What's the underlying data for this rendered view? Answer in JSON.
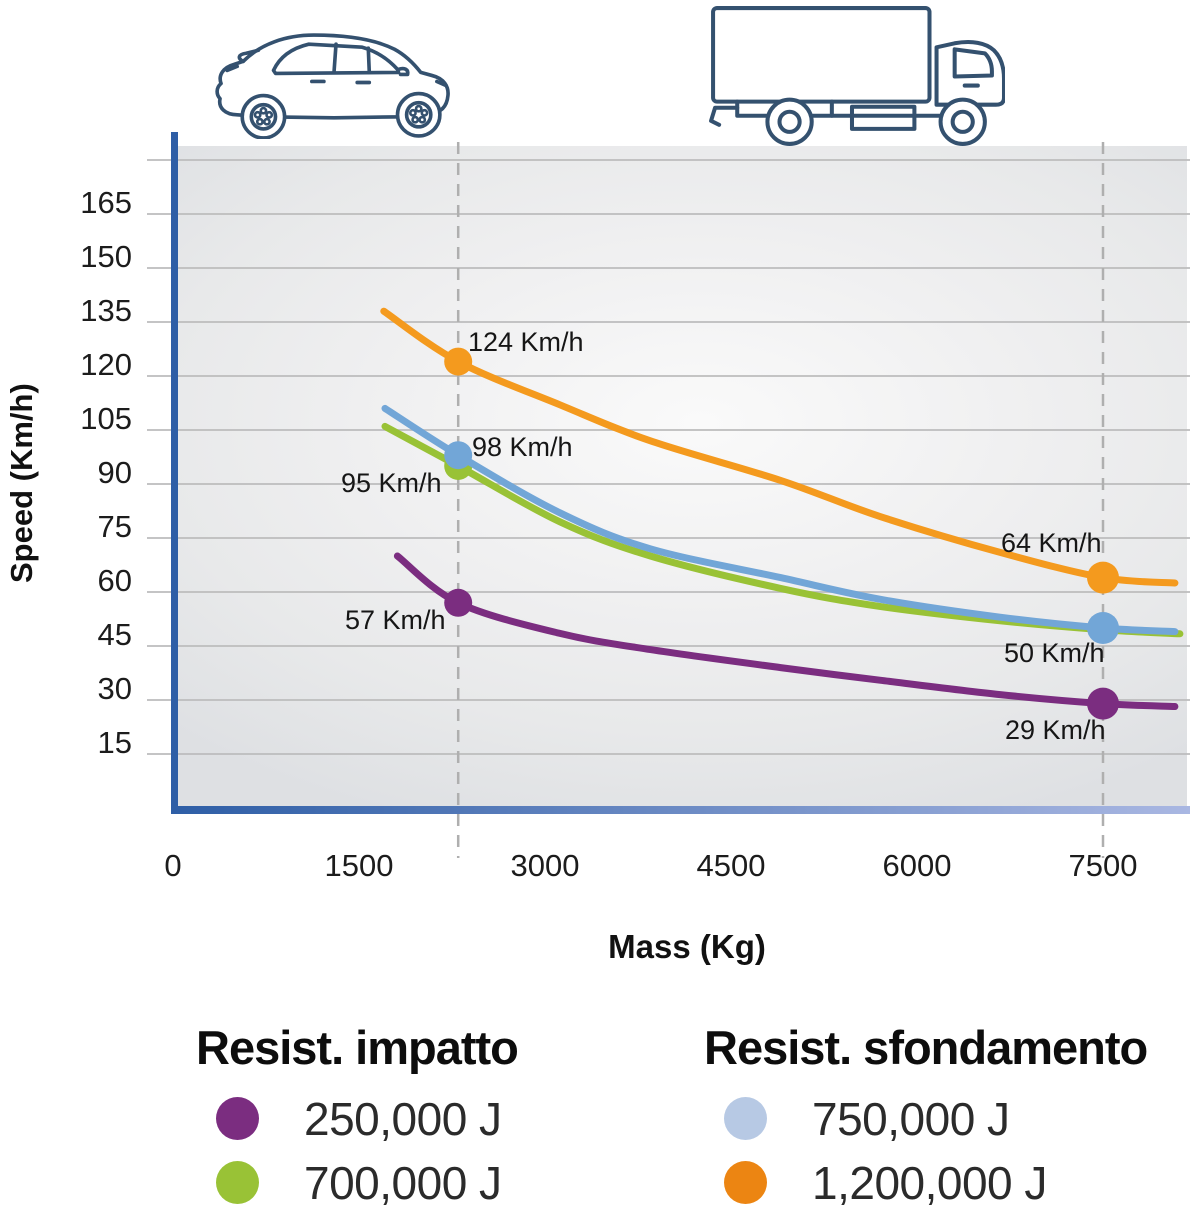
{
  "chart_data": {
    "type": "line",
    "xlabel": "Mass (Kg)",
    "ylabel": "Speed (Km/h)",
    "x_ticks": [
      0,
      1500,
      3000,
      4500,
      6000,
      7500
    ],
    "y_ticks": [
      15,
      30,
      45,
      60,
      75,
      90,
      105,
      120,
      135,
      150,
      165
    ],
    "y_gridlines": [
      15,
      30,
      45,
      60,
      75,
      90,
      105,
      120,
      135,
      150,
      165,
      180
    ],
    "xlim": [
      0,
      8200
    ],
    "ylim": [
      0,
      185
    ],
    "grid": true,
    "legend_position": "bottom",
    "reference_lines": [
      {
        "vehicle": "car",
        "icon": "car-icon",
        "mass": 2300
      },
      {
        "vehicle": "truck",
        "icon": "truck-icon",
        "mass": 7500
      }
    ],
    "series": [
      {
        "name": "250,000 J",
        "group": "Resist. impatto",
        "color": "#7B2D80",
        "points": [
          [
            1810,
            70
          ],
          [
            2300,
            57
          ],
          [
            3120,
            48.5
          ],
          [
            3850,
            44
          ],
          [
            4900,
            39
          ],
          [
            5700,
            35.5
          ],
          [
            6670,
            31.5
          ],
          [
            7500,
            29
          ],
          [
            8080,
            28.2
          ]
        ],
        "markers": [
          {
            "mass": 2300,
            "speed": 57,
            "label": "57 Km/h"
          },
          {
            "mass": 7500,
            "speed": 29,
            "label": "29 Km/h"
          }
        ]
      },
      {
        "name": "700,000 J",
        "group": "Resist. impatto",
        "color": "#99C236",
        "points": [
          [
            1710,
            106
          ],
          [
            2300,
            95
          ],
          [
            3120,
            79.5
          ],
          [
            3850,
            70
          ],
          [
            4900,
            61
          ],
          [
            5700,
            56
          ],
          [
            6670,
            52
          ],
          [
            7500,
            49.5
          ],
          [
            8120,
            48.4
          ]
        ],
        "markers": [
          {
            "mass": 2300,
            "speed": 95,
            "label": "95 Km/h"
          }
        ]
      },
      {
        "name": "750,000 J",
        "group": "Resist. sfondamento",
        "color": "#72A6D7",
        "points": [
          [
            1710,
            111
          ],
          [
            2300,
            98
          ],
          [
            3120,
            82
          ],
          [
            3850,
            72
          ],
          [
            4900,
            64
          ],
          [
            5700,
            58
          ],
          [
            6670,
            53
          ],
          [
            7500,
            50
          ],
          [
            8080,
            49
          ]
        ],
        "markers": [
          {
            "mass": 2300,
            "speed": 98,
            "label": "98 Km/h"
          },
          {
            "mass": 7500,
            "speed": 50,
            "label": "50 Km/h"
          }
        ]
      },
      {
        "name": "1,200,000 J",
        "group": "Resist. sfondamento",
        "color": "#F49A1E",
        "points": [
          [
            1700,
            138
          ],
          [
            2300,
            124
          ],
          [
            3120,
            112
          ],
          [
            3850,
            102
          ],
          [
            4900,
            91
          ],
          [
            5700,
            81
          ],
          [
            6670,
            71
          ],
          [
            7500,
            64
          ],
          [
            8080,
            62.5
          ]
        ],
        "markers": [
          {
            "mass": 2300,
            "speed": 124,
            "label": "124 Km/h"
          },
          {
            "mass": 7500,
            "speed": 64,
            "label": "64 Km/h"
          }
        ]
      }
    ]
  },
  "axis_titles": {
    "y": "Speed (Km/h)",
    "x": "Mass (Kg)"
  },
  "legend": {
    "groups": [
      {
        "title": "Resist. impatto",
        "items": [
          {
            "label": "250,000 J",
            "color": "#7B2D80"
          },
          {
            "label": "700,000 J",
            "color": "#99C236"
          }
        ]
      },
      {
        "title": "Resist. sfondamento",
        "items": [
          {
            "label": "750,000 J",
            "color": "#B7C9E4"
          },
          {
            "label": "1,200,000 J",
            "color": "#EC8512"
          }
        ]
      }
    ]
  },
  "colors": {
    "axis_blue": "#2E5EA6",
    "axis_blue_light": "#A9B7E2",
    "gridline": "#bcbcbd",
    "dashed_reference": "#AFAFAF",
    "tick_text": "#1c1c1c",
    "icon_navy": "#34516F"
  }
}
